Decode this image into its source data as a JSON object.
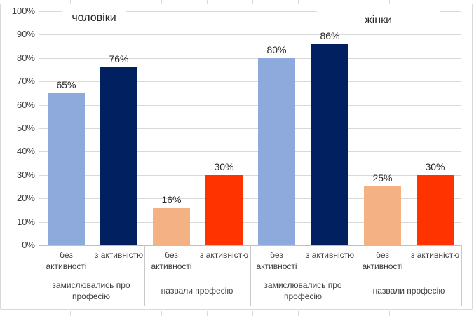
{
  "chart_data": {
    "type": "bar",
    "section_titles": [
      "чоловіки",
      "жінки"
    ],
    "ylabel": "",
    "xlabel": "",
    "ylim": [
      0,
      100
    ],
    "y_tick_step": 10,
    "y_tick_labels": [
      "0%",
      "10%",
      "20%",
      "30%",
      "40%",
      "50%",
      "60%",
      "70%",
      "80%",
      "90%",
      "100%"
    ],
    "grid": true,
    "legend": "none",
    "palette": {
      "light_blue": "#8EA9DB",
      "dark_navy": "#002060",
      "light_orange": "#F4B183",
      "red_orange": "#FF3300"
    },
    "groups": [
      {
        "section": "чоловіки",
        "category": "замислювались про професію",
        "bars": [
          {
            "label": "без активності",
            "value": 65,
            "value_label": "65%",
            "color": "#8EA9DB"
          },
          {
            "label": "з активністю",
            "value": 76,
            "value_label": "76%",
            "color": "#002060"
          }
        ]
      },
      {
        "section": "чоловіки",
        "category": "назвали професію",
        "bars": [
          {
            "label": "без активності",
            "value": 16,
            "value_label": "16%",
            "color": "#F4B183"
          },
          {
            "label": "з активністю",
            "value": 30,
            "value_label": "30%",
            "color": "#FF3300"
          }
        ]
      },
      {
        "section": "жінки",
        "category": "замислювались про професію",
        "bars": [
          {
            "label": "без активності",
            "value": 80,
            "value_label": "80%",
            "color": "#8EA9DB"
          },
          {
            "label": "з активністю",
            "value": 86,
            "value_label": "86%",
            "color": "#002060"
          }
        ]
      },
      {
        "section": "жінки",
        "category": "назвали професію",
        "bars": [
          {
            "label": "без активності",
            "value": 25,
            "value_label": "25%",
            "color": "#F4B183"
          },
          {
            "label": "з активністю",
            "value": 30,
            "value_label": "30%",
            "color": "#FF3300"
          }
        ]
      }
    ]
  }
}
